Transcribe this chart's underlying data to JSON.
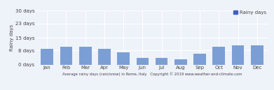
{
  "months": [
    "Jan",
    "Feb",
    "Mar",
    "Apr",
    "May",
    "Jun",
    "Jul",
    "Aug",
    "Sep",
    "Oct",
    "Nov",
    "Dec"
  ],
  "values": [
    9,
    10,
    10,
    9,
    7,
    4,
    4,
    3,
    6,
    10,
    11,
    11
  ],
  "bar_color": "#7b9fd4",
  "ylim": [
    0,
    30
  ],
  "yticks": [
    0,
    8,
    15,
    23,
    30
  ],
  "ytick_labels": [
    "0 days",
    "8 days",
    "15 days",
    "23 days",
    "30 days"
  ],
  "ylabel": "Rainy days",
  "xlabel": "Average rainy days (rain/snow) in Rome, Italy   Copyright © 2019 www.weather-and-climate.com",
  "legend_label": "Rainy days",
  "legend_color": "#4060c0",
  "background_color": "#eef2f9",
  "grid_color": "#ffffff",
  "tick_fontsize": 5,
  "ylabel_fontsize": 5,
  "xlabel_fontsize": 3.8,
  "legend_fontsize": 5
}
